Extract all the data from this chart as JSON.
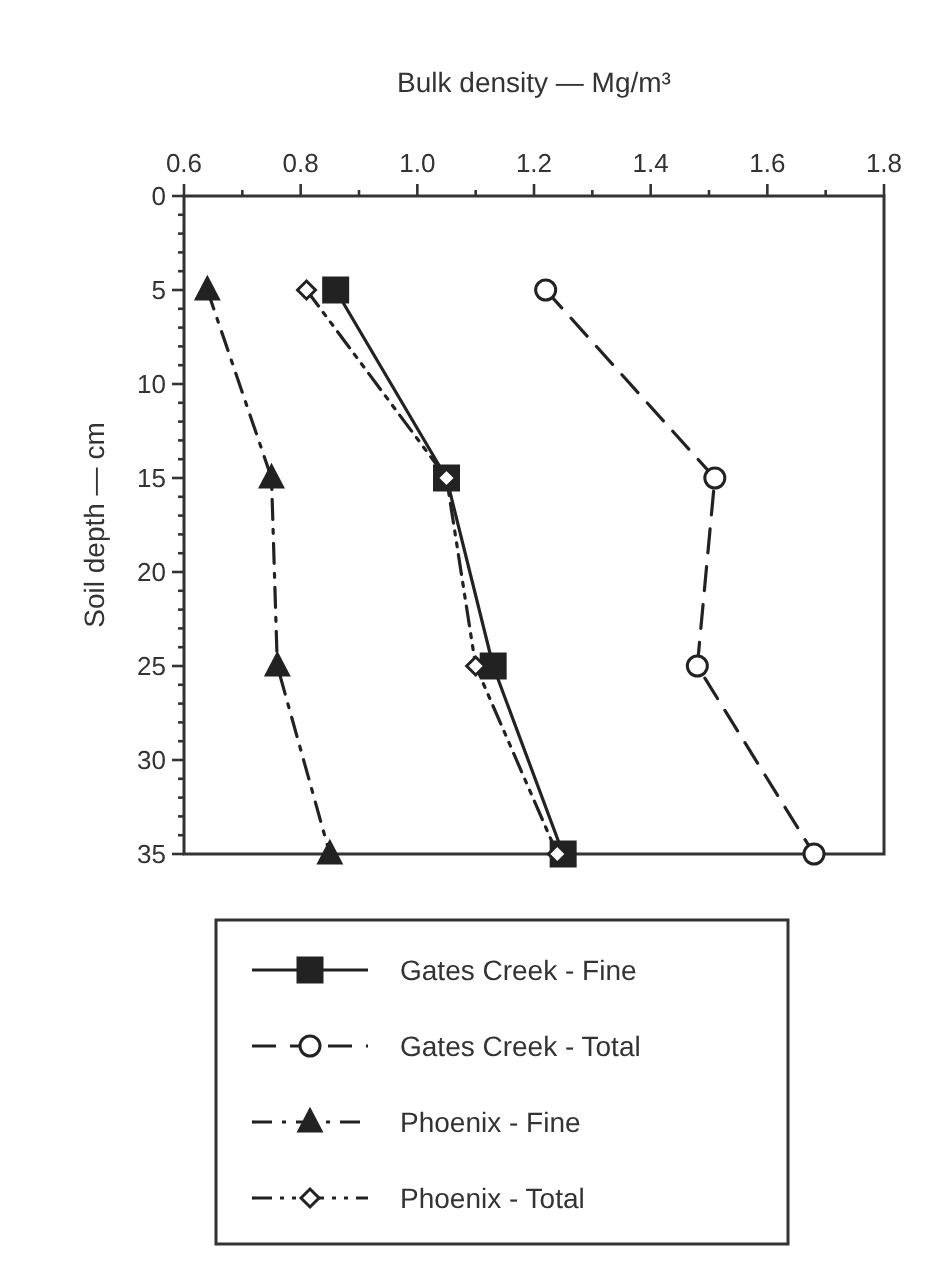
{
  "chart_data": {
    "type": "line",
    "orientation": "horizontal",
    "xlabel": "Bulk density — Mg/m³",
    "ylabel": "Soil depth — cm",
    "x": [
      5,
      15,
      25,
      35
    ],
    "xlim": [
      0.6,
      1.8
    ],
    "xticks": [
      {
        "value": 0.6,
        "label": "0.6"
      },
      {
        "value": 0.7,
        "label": null
      },
      {
        "value": 0.8,
        "label": "0.8"
      },
      {
        "value": 0.9,
        "label": null
      },
      {
        "value": 1,
        "label": "1.0"
      },
      {
        "value": 1.1,
        "label": null
      },
      {
        "value": 1.2,
        "label": "1.2"
      },
      {
        "value": 1.3,
        "label": null
      },
      {
        "value": 1.4,
        "label": "1.4"
      },
      {
        "value": 1.5,
        "label": null
      },
      {
        "value": 1.6,
        "label": "1.6"
      },
      {
        "value": 1.7,
        "label": null
      },
      {
        "value": 1.8,
        "label": "1.8"
      }
    ],
    "ylim": [
      35,
      0
    ],
    "yticks": [
      0,
      {
        "value": 1,
        "label": null
      },
      {
        "value": 2,
        "label": null
      },
      {
        "value": 3,
        "label": null
      },
      {
        "value": 4,
        "label": null
      },
      5,
      {
        "value": 6,
        "label": null
      },
      {
        "value": 7,
        "label": null
      },
      {
        "value": 8,
        "label": null
      },
      {
        "value": 9,
        "label": null
      },
      10,
      {
        "value": 11,
        "label": null
      },
      {
        "value": 12,
        "label": null
      },
      {
        "value": 13,
        "label": null
      },
      {
        "value": 14,
        "label": null
      },
      15,
      {
        "value": 16,
        "label": null
      },
      {
        "value": 17,
        "label": null
      },
      {
        "value": 18,
        "label": null
      },
      {
        "value": 19,
        "label": null
      },
      20,
      {
        "value": 21,
        "label": null
      },
      {
        "value": 22,
        "label": null
      },
      {
        "value": 23,
        "label": null
      },
      {
        "value": 24,
        "label": null
      },
      25,
      {
        "value": 26,
        "label": null
      },
      {
        "value": 27,
        "label": null
      },
      {
        "value": 28,
        "label": null
      },
      {
        "value": 29,
        "label": null
      },
      30,
      {
        "value": 31,
        "label": null
      },
      {
        "value": 32,
        "label": null
      },
      {
        "value": 33,
        "label": null
      },
      {
        "value": 34,
        "label": null
      },
      35
    ],
    "grid": false,
    "legend": "bottom",
    "series": [
      {
        "name": "Gates Creek - Fine",
        "color": "#222222",
        "marker": "square",
        "line_style": "solid",
        "values": [
          0.86,
          1.05,
          1.13,
          1.25
        ]
      },
      {
        "name": "Gates Creek - Total",
        "color": "#222222",
        "marker": "circle",
        "line_style": "dashed",
        "values": [
          1.22,
          1.51,
          1.48,
          1.68
        ]
      },
      {
        "name": "Phoenix - Fine",
        "color": "#222222",
        "marker": "triangle",
        "line_style": "dashdot",
        "values": [
          0.64,
          0.75,
          0.76,
          0.85
        ]
      },
      {
        "name": "Phoenix - Total",
        "color": "#222222",
        "marker": "diamond",
        "line_style": "dashdotdot",
        "values": [
          0.81,
          1.05,
          1.1,
          1.24
        ]
      }
    ]
  }
}
